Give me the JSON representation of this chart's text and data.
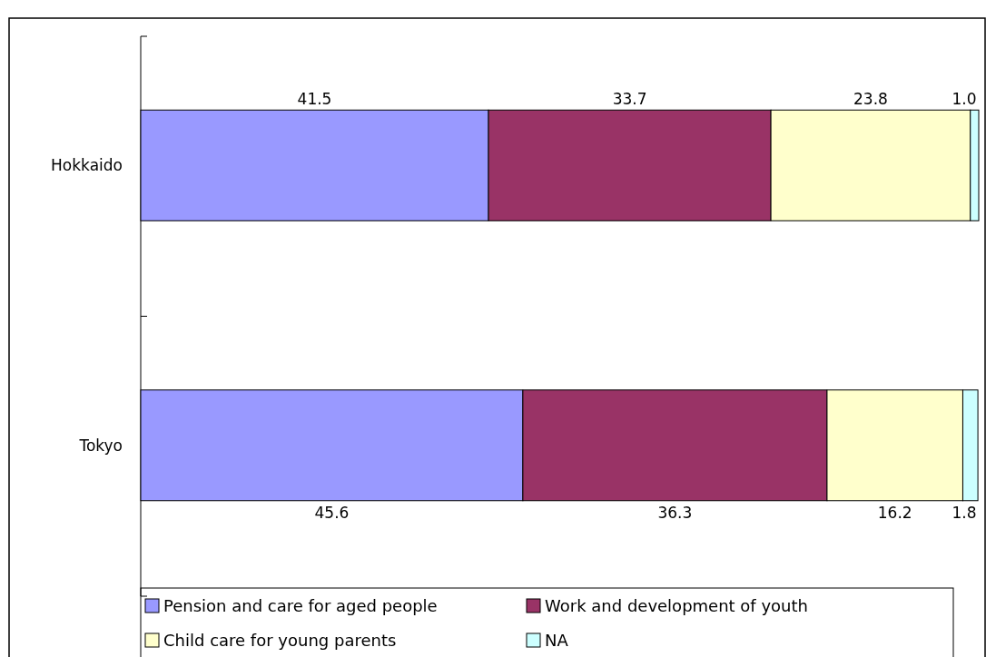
{
  "chart_data": {
    "type": "bar",
    "orientation": "horizontal",
    "stacked": true,
    "legend": "bottom",
    "categories": [
      "Hokkaido",
      "Tokyo"
    ],
    "series": [
      {
        "name": "Pension and care for aged people",
        "color": "#9999ff",
        "values": [
          41.5,
          45.6
        ],
        "value_labels": [
          "41.5",
          "45.6"
        ]
      },
      {
        "name": "Work and development of youth",
        "color": "#993366",
        "values": [
          33.7,
          36.3
        ],
        "value_labels": [
          "33.7",
          "36.3"
        ]
      },
      {
        "name": "Child care for young parents",
        "color": "#ffffcc",
        "values": [
          23.8,
          16.2
        ],
        "value_labels": [
          "23.8",
          "16.2"
        ]
      },
      {
        "name": "NA",
        "color": "#ccffff",
        "values": [
          1.0,
          1.8
        ],
        "value_labels": [
          "1.0",
          "1.8"
        ]
      }
    ]
  }
}
